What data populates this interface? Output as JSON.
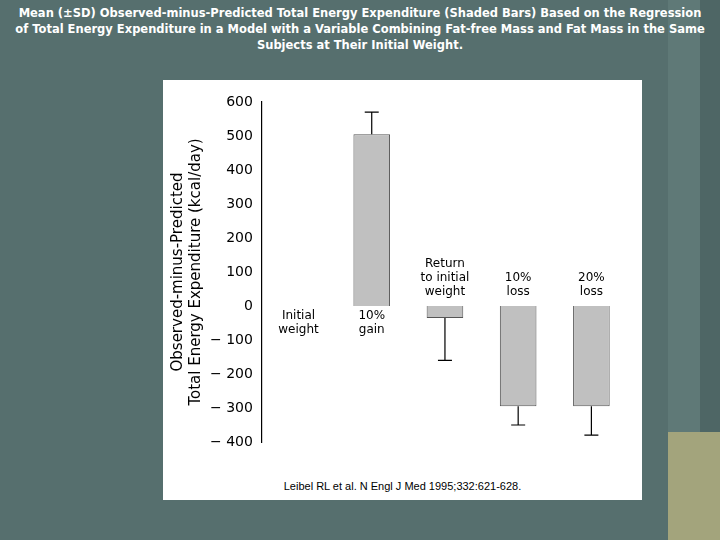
{
  "chart_data": {
    "type": "bar",
    "title": "Mean (±SD) Observed-minus-Predicted Total Energy Expenditure (Shaded Bars) Based on the Regression of Total Energy Expenditure in a Model with a Variable Combining Fat-free Mass and Fat Mass in the Same Subjects at Their Initial Weight.",
    "y_label": "Observed-minus-Predicted\nTotal Energy Expenditure (kcal/day)",
    "annotations": [
      "Leibel RL et al. N Engl J Med 1995;332:621-628."
    ],
    "categories": [
      "Initial\nweight",
      "10%\ngain",
      "Return\nto initial\nweight",
      "10%\nloss",
      "20%\nloss"
    ],
    "values": [
      0,
      505,
      -35,
      -295,
      -295
    ],
    "errors": [
      null,
      65,
      125,
      55,
      85
    ],
    "color": "#c0c0c0",
    "ylim": [
      -400,
      600
    ],
    "yticks": [
      {
        "value": -400,
        "label": "− 400"
      },
      {
        "value": -300,
        "label": "− 300"
      },
      {
        "value": -200,
        "label": "− 200"
      },
      {
        "value": -100,
        "label": "− 100"
      },
      0,
      100,
      200,
      300,
      400,
      500,
      600
    ],
    "grid": false,
    "tick_labels": "y"
  }
}
